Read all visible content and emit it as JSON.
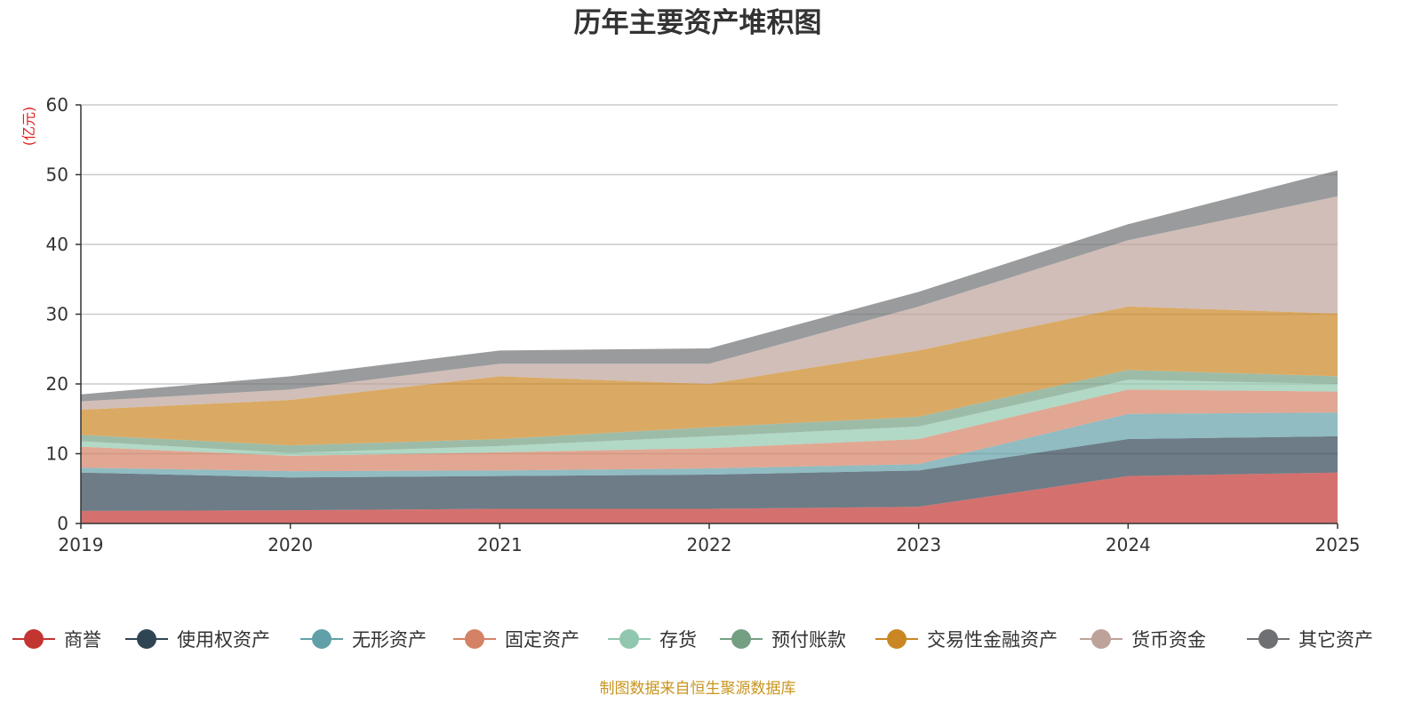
{
  "chart_data": {
    "type": "area",
    "stacked": true,
    "title": "历年主要资产堆积图",
    "ylabel": "(亿元)",
    "xlabel": "",
    "ylim": [
      0,
      60
    ],
    "yticks": [
      0,
      10,
      20,
      30,
      40,
      50,
      60
    ],
    "grid": true,
    "legend_position": "bottom",
    "categories": [
      "2019",
      "2020",
      "2021",
      "2022",
      "2023",
      "2024",
      "2025"
    ],
    "series": [
      {
        "name": "商誉",
        "color": "#c23531",
        "values": [
          1.8,
          1.9,
          2.1,
          2.1,
          2.4,
          6.8,
          7.3
        ]
      },
      {
        "name": "使用权资产",
        "color": "#2f4554",
        "values": [
          5.5,
          4.7,
          4.7,
          4.9,
          5.2,
          5.3,
          5.2
        ]
      },
      {
        "name": "无形资产",
        "color": "#61a0a8",
        "values": [
          0.7,
          0.9,
          0.8,
          0.9,
          0.9,
          3.6,
          3.4
        ]
      },
      {
        "name": "固定资产",
        "color": "#d48265",
        "values": [
          3.0,
          2.2,
          2.6,
          2.9,
          3.6,
          3.5,
          3.0
        ]
      },
      {
        "name": "存货",
        "color": "#91c7ae",
        "values": [
          0.8,
          0.4,
          0.9,
          1.7,
          1.8,
          1.4,
          1.1
        ]
      },
      {
        "name": "预付账款",
        "color": "#749f83",
        "values": [
          0.9,
          1.1,
          1.0,
          1.3,
          1.4,
          1.4,
          1.1
        ]
      },
      {
        "name": "交易性金融资产",
        "color": "#ca8622",
        "values": [
          3.6,
          6.5,
          9.0,
          6.2,
          9.5,
          9.1,
          9.0
        ]
      },
      {
        "name": "货币资金",
        "color": "#bda29a",
        "values": [
          1.2,
          1.5,
          1.8,
          2.9,
          6.3,
          9.5,
          16.8
        ]
      },
      {
        "name": "其它资产",
        "color": "#6e7074",
        "values": [
          1.0,
          1.9,
          1.9,
          2.2,
          2.1,
          2.3,
          3.7
        ]
      }
    ]
  },
  "footer": {
    "source": "制图数据来自恒生聚源数据库",
    "color": "#c8951e"
  },
  "colors": {
    "unit_label": "#e02020",
    "axis": "#333333",
    "grid": "#cccccc"
  }
}
